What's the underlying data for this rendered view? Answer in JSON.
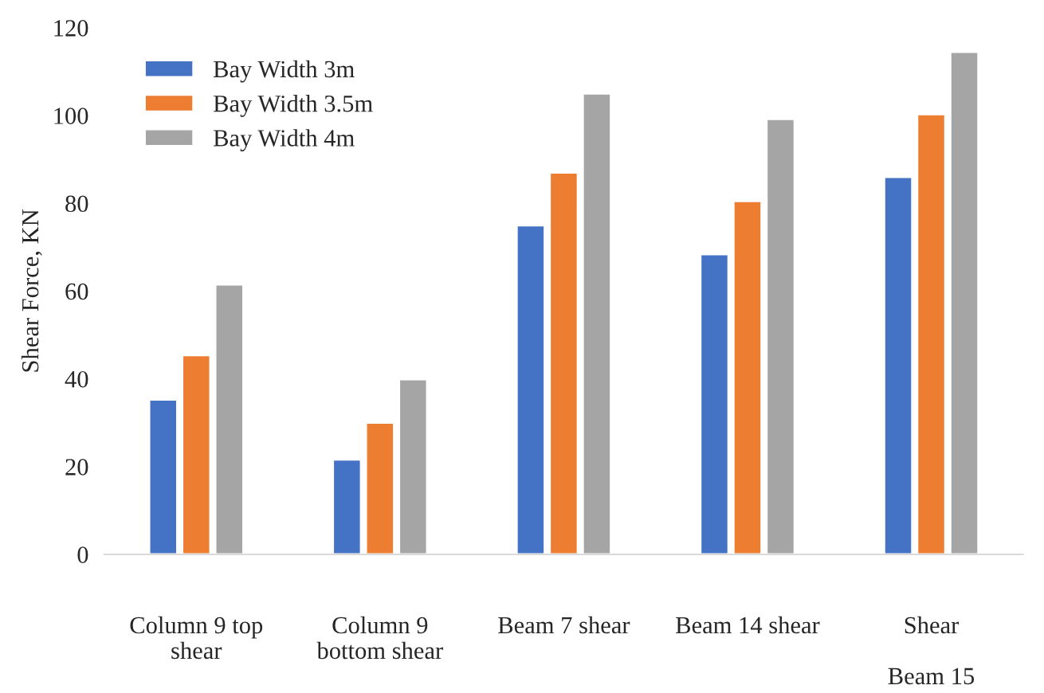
{
  "chart_data": {
    "type": "bar",
    "ylabel": "Shear Force, KN",
    "categories": [
      "Column 9 top\nshear",
      "Column 9\nbottom shear",
      "Beam 7 shear",
      "Beam 14 shear",
      "Shear\n\nBeam 15"
    ],
    "series": [
      {
        "name": "Bay Width 3m",
        "color": "#4472c4",
        "values": [
          35.3,
          21.6,
          75,
          68.4,
          86
        ]
      },
      {
        "name": "Bay Width 3.5m",
        "color": "#ed7d31",
        "values": [
          45.4,
          30,
          87,
          80.5,
          100.3
        ]
      },
      {
        "name": "Bay Width 4m",
        "color": "#a5a5a5",
        "values": [
          61.5,
          39.9,
          105,
          99.2,
          114.5
        ]
      }
    ],
    "ylim": [
      0,
      120
    ],
    "yticks": [
      0,
      20,
      40,
      60,
      80,
      100,
      120
    ],
    "grid": false,
    "legend": "top left"
  }
}
